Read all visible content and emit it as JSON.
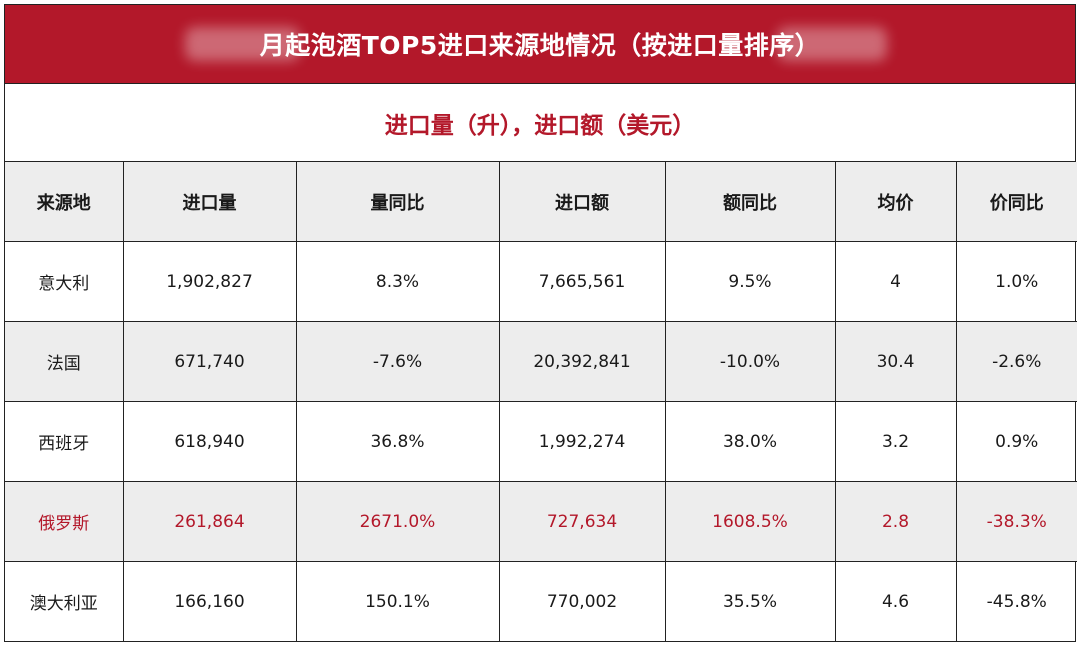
{
  "banner": {
    "title": "月起泡酒TOP5进口来源地情况（按进口量排序）"
  },
  "subtitle": "进口量（升），进口额（美元）",
  "table": {
    "headers": [
      "来源地",
      "进口量",
      "量同比",
      "进口额",
      "额同比",
      "均价",
      "价同比"
    ],
    "rows": [
      {
        "origin": "意大利",
        "volume": "1,902,827",
        "volume_yoy": "8.3%",
        "value": "7,665,561",
        "value_yoy": "9.5%",
        "avg_price": "4",
        "price_yoy": "1.0%"
      },
      {
        "origin": "法国",
        "volume": "671,740",
        "volume_yoy": "-7.6%",
        "value": "20,392,841",
        "value_yoy": "-10.0%",
        "avg_price": "30.4",
        "price_yoy": "-2.6%"
      },
      {
        "origin": "西班牙",
        "volume": "618,940",
        "volume_yoy": "36.8%",
        "value": "1,992,274",
        "value_yoy": "38.0%",
        "avg_price": "3.2",
        "price_yoy": "0.9%"
      },
      {
        "origin": "俄罗斯",
        "volume": "261,864",
        "volume_yoy": "2671.0%",
        "value": "727,634",
        "value_yoy": "1608.5%",
        "avg_price": "2.8",
        "price_yoy": "-38.3%"
      },
      {
        "origin": "澳大利亚",
        "volume": "166,160",
        "volume_yoy": "150.1%",
        "value": "770,002",
        "value_yoy": "35.5%",
        "avg_price": "4.6",
        "price_yoy": "-45.8%"
      }
    ]
  },
  "colors": {
    "accent": "#b3182a",
    "header_bg": "#ededed"
  }
}
